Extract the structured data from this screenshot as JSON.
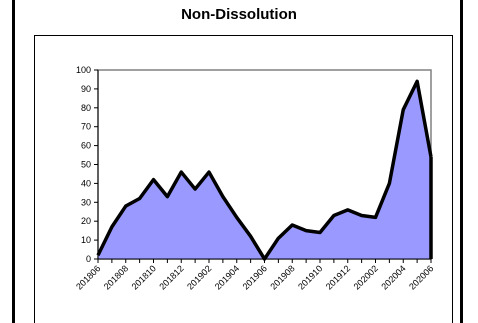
{
  "chart_data": {
    "type": "area",
    "title": "Non-Dissolution",
    "xlabel": "",
    "ylabel": "",
    "ylim": [
      0,
      100
    ],
    "yticks": [
      0,
      10,
      20,
      30,
      40,
      50,
      60,
      70,
      80,
      90,
      100
    ],
    "x": [
      "201806",
      "201807",
      "201808",
      "201809",
      "201810",
      "201811",
      "201812",
      "201901",
      "201902",
      "201903",
      "201904",
      "201905",
      "201906",
      "201907",
      "201908",
      "201909",
      "201910",
      "201911",
      "201912",
      "202001",
      "202002",
      "202003",
      "202004",
      "202005",
      "202006"
    ],
    "xtick_labels": [
      "201806",
      "201808",
      "201810",
      "201812",
      "201902",
      "201904",
      "201906",
      "201908",
      "201910",
      "201912",
      "202002",
      "202004",
      "202006"
    ],
    "series": [
      {
        "values": [
          2,
          17,
          28,
          32,
          42,
          33,
          46,
          37,
          46,
          33,
          22,
          12,
          0,
          11,
          18,
          15,
          14,
          23,
          26,
          23,
          22,
          40,
          79,
          94,
          54
        ]
      }
    ],
    "colors": {
      "fill": "#9999ff",
      "line": "#000000",
      "plot_border": "#808080"
    },
    "grid": false,
    "legend": "none"
  }
}
